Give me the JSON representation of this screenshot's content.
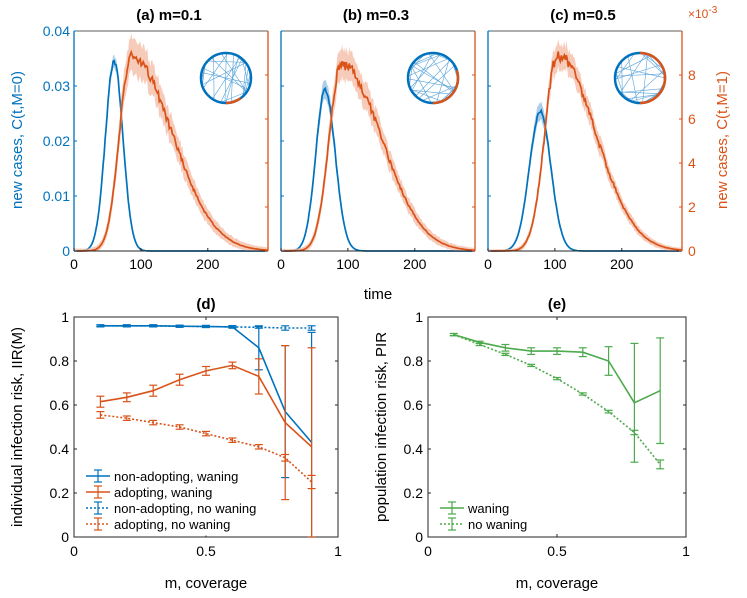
{
  "colors": {
    "blue": "#0072BD",
    "blue_band": "#9DC6E6",
    "orange": "#D95319",
    "orange_band": "#F4B9A1",
    "green": "#4DAA4D",
    "axis": "#262626"
  },
  "top_panels": {
    "shared_xlabel": "time",
    "left_ylabel": "new cases, C(t,M=0)",
    "right_ylabel": "new cases, C(t,M=1)",
    "right_exponent_base": "×10",
    "right_exponent_power": "-3",
    "xticks": [
      "0",
      "100",
      "200"
    ],
    "left_yticks": [
      "0",
      "0.01",
      "0.02",
      "0.03",
      "0.04"
    ],
    "right_yticks": [
      "0",
      "2",
      "4",
      "6",
      "8"
    ]
  },
  "bottom_panels": {
    "d": {
      "title": "(d)",
      "xlabel": "m, coverage",
      "ylabel": "individual infection risk, IIR(M)",
      "xticks": [
        "0",
        "0.5",
        "1"
      ],
      "yticks": [
        "0",
        "0.2",
        "0.4",
        "0.6",
        "0.8",
        "1"
      ],
      "legend": [
        "non-adopting, waning",
        "adopting, waning",
        "non-adopting, no waning",
        "adopting, no waning"
      ]
    },
    "e": {
      "title": "(e)",
      "xlabel": "m, coverage",
      "ylabel": "population infection risk, PIR",
      "xticks": [
        "0",
        "0.5",
        "1"
      ],
      "yticks": [
        "0",
        "0.2",
        "0.4",
        "0.6",
        "0.8",
        "1"
      ],
      "legend": [
        "waning",
        "no waning"
      ]
    }
  },
  "chart_data": [
    {
      "type": "line",
      "panel": "a",
      "title": "(a) m=0.1",
      "xlabel": "time",
      "ylabel": "new cases, C(t,M=0)",
      "y2label": "new cases, C(t,M=1) (×10^-3)",
      "xlim": [
        0,
        290
      ],
      "ylim": [
        0,
        0.04
      ],
      "y2lim": [
        0,
        0.01
      ],
      "series": [
        {
          "name": "C(t,M=0)",
          "axis": "left",
          "color": "blue",
          "peak_time": 60,
          "peak_value": 0.0345,
          "rise_width": 13,
          "fall_width": 13,
          "band": 0.0012
        },
        {
          "name": "C(t,M=1)",
          "axis": "right",
          "color": "orange",
          "peak_time": 85,
          "peak_value": 0.0088,
          "rise_width": 17,
          "fall_width": 62,
          "band": 0.0007
        }
      ]
    },
    {
      "type": "line",
      "panel": "b",
      "title": "(b) m=0.3",
      "xlabel": "time",
      "ylabel": "new cases, C(t,M=0)",
      "y2label": "new cases, C(t,M=1) (×10^-3)",
      "xlim": [
        0,
        290
      ],
      "ylim": [
        0,
        0.04
      ],
      "y2lim": [
        0,
        0.01
      ],
      "series": [
        {
          "name": "C(t,M=0)",
          "axis": "left",
          "color": "blue",
          "peak_time": 66,
          "peak_value": 0.0293,
          "rise_width": 14,
          "fall_width": 15,
          "band": 0.0018
        },
        {
          "name": "C(t,M=1)",
          "axis": "right",
          "color": "orange",
          "peak_time": 90,
          "peak_value": 0.0085,
          "rise_width": 18,
          "fall_width": 60,
          "band": 0.0006
        }
      ]
    },
    {
      "type": "line",
      "panel": "c",
      "title": "(c) m=0.5",
      "xlabel": "time",
      "ylabel": "new cases, C(t,M=0)",
      "y2label": "new cases, C(t,M=1) (×10^-3)",
      "xlim": [
        0,
        290
      ],
      "ylim": [
        0,
        0.04
      ],
      "y2lim": [
        0,
        0.01
      ],
      "series": [
        {
          "name": "C(t,M=0)",
          "axis": "left",
          "color": "blue",
          "peak_time": 78,
          "peak_value": 0.0253,
          "rise_width": 16,
          "fall_width": 16,
          "band": 0.0016
        },
        {
          "name": "C(t,M=1)",
          "axis": "right",
          "color": "orange",
          "peak_time": 104,
          "peak_value": 0.0089,
          "rise_width": 19,
          "fall_width": 57,
          "band": 0.0005
        }
      ]
    },
    {
      "type": "line",
      "panel": "d",
      "title": "(d)",
      "xlabel": "m, coverage",
      "ylabel": "individual infection risk, IIR(M)",
      "xlim": [
        0,
        1
      ],
      "ylim": [
        0,
        1
      ],
      "x": [
        0.1,
        0.2,
        0.3,
        0.4,
        0.5,
        0.6,
        0.7,
        0.8,
        0.9
      ],
      "series": [
        {
          "name": "non-adopting, waning",
          "color": "blue",
          "dash": false,
          "values": [
            0.96,
            0.96,
            0.96,
            0.958,
            0.957,
            0.955,
            0.86,
            0.57,
            0.43
          ],
          "err": [
            0.005,
            0.005,
            0.005,
            0.005,
            0.005,
            0.006,
            0.1,
            0.3,
            0.5
          ]
        },
        {
          "name": "adopting, waning",
          "color": "orange",
          "dash": false,
          "values": [
            0.615,
            0.635,
            0.665,
            0.715,
            0.755,
            0.78,
            0.73,
            0.52,
            0.41
          ],
          "err": [
            0.025,
            0.02,
            0.025,
            0.025,
            0.02,
            0.015,
            0.08,
            0.35,
            0.45
          ]
        },
        {
          "name": "non-adopting, no waning",
          "color": "blue",
          "dash": true,
          "values": [
            0.96,
            0.96,
            0.96,
            0.958,
            0.957,
            0.955,
            0.953,
            0.95,
            0.95
          ],
          "err": [
            0.003,
            0.003,
            0.003,
            0.003,
            0.003,
            0.003,
            0.004,
            0.01,
            0.01
          ]
        },
        {
          "name": "adopting, no waning",
          "color": "orange",
          "dash": true,
          "values": [
            0.555,
            0.54,
            0.52,
            0.5,
            0.47,
            0.44,
            0.41,
            0.36,
            0.25
          ],
          "err": [
            0.015,
            0.01,
            0.01,
            0.01,
            0.01,
            0.01,
            0.01,
            0.015,
            0.03
          ]
        }
      ]
    },
    {
      "type": "line",
      "panel": "e",
      "title": "(e)",
      "xlabel": "m, coverage",
      "ylabel": "population infection risk, PIR",
      "xlim": [
        0,
        1
      ],
      "ylim": [
        0,
        1
      ],
      "x": [
        0.1,
        0.2,
        0.3,
        0.4,
        0.5,
        0.6,
        0.7,
        0.8,
        0.9
      ],
      "series": [
        {
          "name": "waning",
          "color": "green",
          "dash": false,
          "values": [
            0.92,
            0.885,
            0.86,
            0.845,
            0.845,
            0.84,
            0.8,
            0.61,
            0.665
          ],
          "err": [
            0.005,
            0.005,
            0.015,
            0.015,
            0.015,
            0.02,
            0.065,
            0.27,
            0.24
          ]
        },
        {
          "name": "no waning",
          "color": "green",
          "dash": true,
          "values": [
            0.92,
            0.875,
            0.83,
            0.78,
            0.72,
            0.65,
            0.57,
            0.475,
            0.33
          ],
          "err": [
            0.005,
            0.005,
            0.005,
            0.005,
            0.005,
            0.005,
            0.006,
            0.01,
            0.02
          ]
        }
      ]
    }
  ]
}
